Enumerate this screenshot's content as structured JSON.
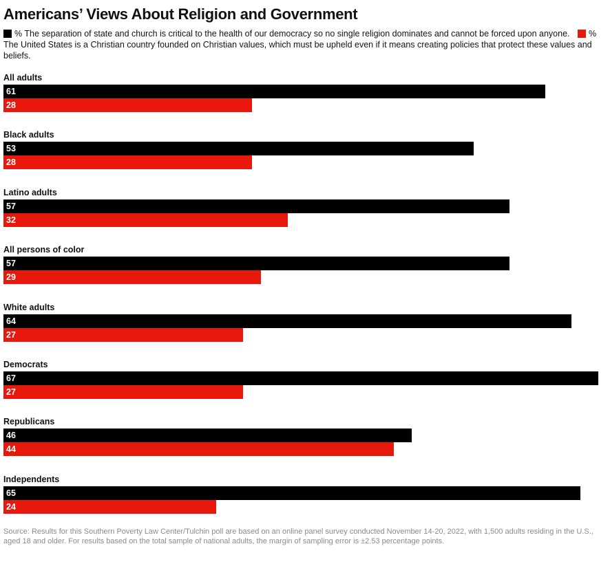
{
  "chart_data": {
    "type": "bar",
    "orientation": "horizontal",
    "title": "Americans’ Views About Religion and Government",
    "categories": [
      "All adults",
      "Black adults",
      "Latino adults",
      "All persons of color",
      "White adults",
      "Democrats",
      "Republicans",
      "Independents"
    ],
    "series": [
      {
        "name": "% The separation of state and church is critical to the health of our democracy so no single religion dominates and cannot be forced upon anyone.",
        "color": "#000000",
        "values": [
          61,
          53,
          57,
          57,
          64,
          67,
          46,
          65
        ]
      },
      {
        "name": "% The United States is a Christian country founded on Christian values, which must be upheld even if it means creating policies that protect these values and beliefs.",
        "color": "#e8180c",
        "values": [
          28,
          28,
          32,
          29,
          27,
          27,
          44,
          24
        ]
      }
    ],
    "xlim": [
      0,
      67
    ],
    "grid": false,
    "legend_position": "top",
    "source": "Source: Results for this Southern Poverty Law Center/Tulchin poll are based on an online panel survey conducted November 14-20, 2022, with 1,500 adults residing in the U.S., aged 18 and older. For results based on the total sample of national adults, the margin of sampling error is ±2.53 percentage points."
  }
}
